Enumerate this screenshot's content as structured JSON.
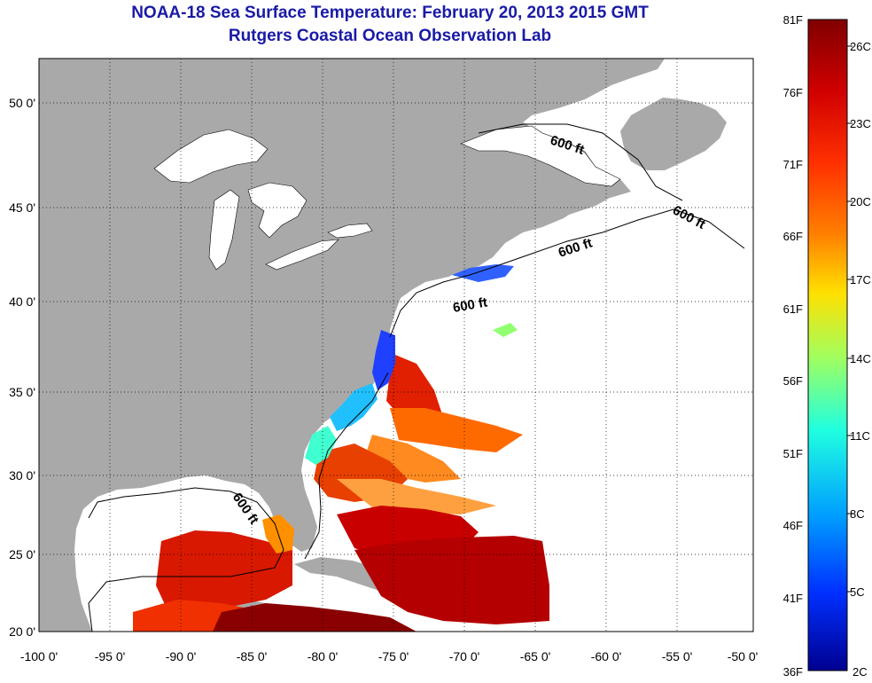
{
  "header": {
    "title": "NOAA-18 Sea Surface Temperature:  February 20, 2013 2015 GMT",
    "subtitle": "Rutgers Coastal Ocean Observation Lab"
  },
  "axes": {
    "lon_labels": [
      "-100 0'",
      "-95 0'",
      "-90 0'",
      "-85 0'",
      "-80 0'",
      "-75 0'",
      "-70 0'",
      "-65 0'",
      "-60 0'",
      "-55 0'",
      "-50 0'"
    ],
    "lat_labels": [
      "50 0'",
      "45 0'",
      "40 0'",
      "35 0'",
      "30 0'",
      "25 0'",
      "20 0'"
    ]
  },
  "contours": {
    "label": "600 ft"
  },
  "colorbar": {
    "fahrenheit_labels": [
      "81F",
      "76F",
      "71F",
      "66F",
      "61F",
      "56F",
      "51F",
      "46F",
      "41F",
      "36F"
    ],
    "celsius_labels": [
      "26C",
      "23C",
      "20C",
      "17C",
      "14C",
      "11C",
      "8C",
      "5C",
      "2C"
    ],
    "colors": [
      "#800000",
      "#d00000",
      "#ff3000",
      "#ff8000",
      "#ffe000",
      "#a0ff60",
      "#20ffe0",
      "#00a0ff",
      "#0030ff",
      "#000090"
    ]
  },
  "colors": {
    "title": "#1a1aa6",
    "land": "#a9a9a9",
    "ocean": "#ffffff",
    "grid": "#000000"
  }
}
